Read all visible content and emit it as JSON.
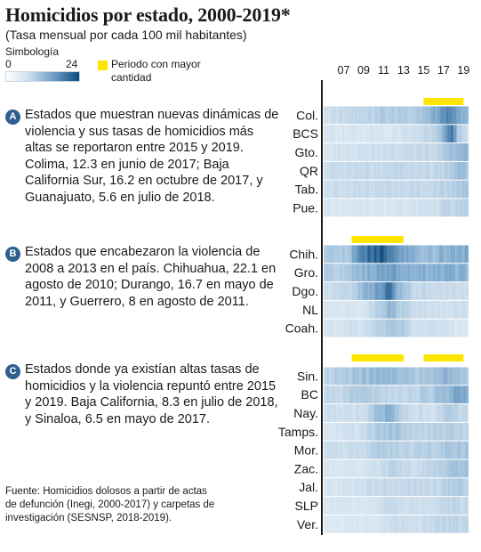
{
  "title": "Homicidios por estado, 2000-2019*",
  "subtitle": "(Tasa mensual por cada 100 mil habitantes)",
  "legend": {
    "title": "Simbología",
    "min_label": "0",
    "max_label": "24",
    "period_label": "Periodo con mayor cantidad",
    "period_color": "#ffe600",
    "scale_colors": [
      "#ffffff",
      "#0c4a7e"
    ]
  },
  "groups": [
    {
      "badge": "A",
      "text": "Estados que muestran nuevas dinámicas de violencia y sus tasas de homicidios más altas se reportaron entre 2015 y 2019. Colima, 12.3 en junio de 2017; Baja California Sur, 16.2 en octubre de 2017, y Guanajuato, 5.6 en julio de 2018."
    },
    {
      "badge": "B",
      "text": "Estados que encabezaron la violencia de 2008 a 2013 en el país. Chihuahua, 22.1 en agosto de 2010; Durango, 16.7 en mayo de 2011, y Guerrero, 8 en agosto de 2011."
    },
    {
      "badge": "C",
      "text": "Estados donde ya existían altas tasas de homicidios y la violencia repuntó entre 2015 y 2019. Baja California, 8.3 en julio de 2018, y Sinaloa, 6.5 en mayo de 2017."
    }
  ],
  "source": "Fuente: Homicidios dolosos a partir de actas de defunción (Inegi, 2000-2017) y carpetas de investigación (SESNSP, 2018-2019).",
  "chart_data": {
    "type": "heatmap",
    "title": "Homicidios por estado, 2000-2019*",
    "subtitle": "(Tasa mensual por cada 100 mil habitantes)",
    "x_tick_labels": [
      "07",
      "09",
      "11",
      "13",
      "15",
      "17",
      "19"
    ],
    "x_ticks": [
      2007,
      2009,
      2011,
      2013,
      2015,
      2017,
      2019
    ],
    "x_range": [
      2005,
      2019.5
    ],
    "color_scale": {
      "min": 0,
      "max": 24
    },
    "groups": [
      {
        "id": "A",
        "highlight_periods": [
          [
            2015,
            2019
          ]
        ],
        "states": [
          {
            "label": "Col.",
            "peak": 12.3,
            "peak_date": 2017.42,
            "profile": [
              [
                2005,
                1.5
              ],
              [
                2010,
                2.5
              ],
              [
                2011,
                3.5
              ],
              [
                2014,
                2.5
              ],
              [
                2015.5,
                4.5
              ],
              [
                2016.5,
                8
              ],
              [
                2017.4,
                12.3
              ],
              [
                2018.5,
                8
              ],
              [
                2019.5,
                5.5
              ]
            ]
          },
          {
            "label": "BCS",
            "peak": 16.2,
            "peak_date": 2017.79,
            "profile": [
              [
                2005,
                1
              ],
              [
                2012,
                1
              ],
              [
                2014,
                1.5
              ],
              [
                2016,
                2.5
              ],
              [
                2017,
                5
              ],
              [
                2017.8,
                16.2
              ],
              [
                2018.4,
                3.5
              ],
              [
                2019.5,
                1.5
              ]
            ]
          },
          {
            "label": "Gto.",
            "peak": 5.6,
            "peak_date": 2018.54,
            "profile": [
              [
                2005,
                1
              ],
              [
                2010,
                1.5
              ],
              [
                2016,
                2
              ],
              [
                2017,
                3
              ],
              [
                2018.5,
                5.6
              ],
              [
                2019.5,
                5
              ]
            ]
          },
          {
            "label": "QR",
            "peak": null,
            "peak_date": null,
            "profile": [
              [
                2005,
                1.5
              ],
              [
                2011,
                2
              ],
              [
                2016,
                2
              ],
              [
                2017.5,
                3
              ],
              [
                2018.5,
                4.5
              ],
              [
                2019.5,
                4
              ]
            ]
          },
          {
            "label": "Tab.",
            "peak": null,
            "peak_date": null,
            "profile": [
              [
                2005,
                1.5
              ],
              [
                2011,
                2
              ],
              [
                2016,
                2
              ],
              [
                2017.5,
                2.5
              ],
              [
                2018.7,
                4
              ],
              [
                2019.5,
                3.5
              ]
            ]
          },
          {
            "label": "Pue.",
            "peak": null,
            "peak_date": null,
            "profile": [
              [
                2005,
                1
              ],
              [
                2012,
                1
              ],
              [
                2016,
                1.5
              ],
              [
                2018,
                2.5
              ],
              [
                2019.5,
                2.5
              ]
            ]
          }
        ]
      },
      {
        "id": "B",
        "highlight_periods": [
          [
            2007.8,
            2013
          ]
        ],
        "states": [
          {
            "label": "Chih.",
            "peak": 22.1,
            "peak_date": 2010.62,
            "profile": [
              [
                2005,
                3.5
              ],
              [
                2007.5,
                3.5
              ],
              [
                2008.5,
                11
              ],
              [
                2009.5,
                16
              ],
              [
                2010.6,
                22.1
              ],
              [
                2011.5,
                15
              ],
              [
                2012.5,
                9
              ],
              [
                2014,
                6
              ],
              [
                2016,
                5
              ],
              [
                2018,
                7
              ],
              [
                2019.5,
                6.5
              ]
            ]
          },
          {
            "label": "Gro.",
            "peak": 8,
            "peak_date": 2011.62,
            "profile": [
              [
                2005,
                3
              ],
              [
                2008,
                4
              ],
              [
                2009,
                5.5
              ],
              [
                2010.5,
                6.5
              ],
              [
                2011.6,
                8
              ],
              [
                2012.5,
                7
              ],
              [
                2014,
                6
              ],
              [
                2016,
                6.5
              ],
              [
                2017.5,
                7
              ],
              [
                2019.5,
                5
              ]
            ]
          },
          {
            "label": "Dgo.",
            "peak": 16.7,
            "peak_date": 2011.37,
            "profile": [
              [
                2005,
                1.5
              ],
              [
                2008,
                2.5
              ],
              [
                2009,
                5
              ],
              [
                2010.5,
                9
              ],
              [
                2011.4,
                16.7
              ],
              [
                2012.3,
                6
              ],
              [
                2014,
                2
              ],
              [
                2019.5,
                1.5
              ]
            ]
          },
          {
            "label": "NL",
            "peak": null,
            "peak_date": null,
            "profile": [
              [
                2005,
                1
              ],
              [
                2009,
                1
              ],
              [
                2010.5,
                3
              ],
              [
                2011.5,
                5.5
              ],
              [
                2012.5,
                3.5
              ],
              [
                2014,
                1.5
              ],
              [
                2019.5,
                1.5
              ]
            ]
          },
          {
            "label": "Coah.",
            "peak": null,
            "peak_date": null,
            "profile": [
              [
                2005,
                1
              ],
              [
                2009.5,
                1.5
              ],
              [
                2011,
                3
              ],
              [
                2012,
                4
              ],
              [
                2013,
                3
              ],
              [
                2014,
                1.5
              ],
              [
                2019.5,
                1
              ]
            ]
          }
        ]
      },
      {
        "id": "C",
        "highlight_periods": [
          [
            2007.8,
            2013
          ],
          [
            2015,
            2019
          ]
        ],
        "states": [
          {
            "label": "Sin.",
            "peak": 6.5,
            "peak_date": 2017.37,
            "profile": [
              [
                2005,
                2.5
              ],
              [
                2008,
                3.5
              ],
              [
                2009,
                4.5
              ],
              [
                2010.5,
                5.5
              ],
              [
                2011.5,
                5
              ],
              [
                2013,
                4
              ],
              [
                2015,
                3.5
              ],
              [
                2017.4,
                6.5
              ],
              [
                2018.5,
                4
              ],
              [
                2019.5,
                3.5
              ]
            ]
          },
          {
            "label": "BC",
            "peak": 8.3,
            "peak_date": 2018.54,
            "profile": [
              [
                2005,
                2
              ],
              [
                2007,
                2
              ],
              [
                2008.5,
                3.5
              ],
              [
                2010,
                3
              ],
              [
                2012,
                2
              ],
              [
                2014,
                2.5
              ],
              [
                2016,
                3.5
              ],
              [
                2017.5,
                6
              ],
              [
                2018.5,
                8.3
              ],
              [
                2019.5,
                7
              ]
            ]
          },
          {
            "label": "Nay.",
            "peak": null,
            "peak_date": null,
            "profile": [
              [
                2005,
                1.5
              ],
              [
                2009,
                1.5
              ],
              [
                2010.5,
                5
              ],
              [
                2011.5,
                6
              ],
              [
                2012.5,
                3
              ],
              [
                2014,
                1.5
              ],
              [
                2016,
                1.5
              ],
              [
                2017.5,
                3
              ],
              [
                2019,
                2
              ],
              [
                2019.5,
                2
              ]
            ]
          },
          {
            "label": "Tamps.",
            "peak": null,
            "peak_date": null,
            "profile": [
              [
                2005,
                1
              ],
              [
                2009,
                1.5
              ],
              [
                2010.5,
                3.5
              ],
              [
                2012,
                4
              ],
              [
                2014,
                2.5
              ],
              [
                2016,
                2.5
              ],
              [
                2017.5,
                3
              ],
              [
                2019.5,
                2.5
              ]
            ]
          },
          {
            "label": "Mor.",
            "peak": null,
            "peak_date": null,
            "profile": [
              [
                2005,
                1.5
              ],
              [
                2009,
                2
              ],
              [
                2010.5,
                3.5
              ],
              [
                2012,
                3
              ],
              [
                2014,
                2.5
              ],
              [
                2016,
                3
              ],
              [
                2017.5,
                3.5
              ],
              [
                2019.5,
                4
              ]
            ]
          },
          {
            "label": "Zac.",
            "peak": null,
            "peak_date": null,
            "profile": [
              [
                2005,
                1
              ],
              [
                2009,
                1
              ],
              [
                2011,
                2
              ],
              [
                2012,
                2.5
              ],
              [
                2014,
                1.5
              ],
              [
                2016,
                2.5
              ],
              [
                2018,
                4
              ],
              [
                2019.5,
                4
              ]
            ]
          },
          {
            "label": "Jal.",
            "peak": null,
            "peak_date": null,
            "profile": [
              [
                2005,
                1
              ],
              [
                2009,
                1.5
              ],
              [
                2011,
                2
              ],
              [
                2013,
                2
              ],
              [
                2016,
                2
              ],
              [
                2018,
                3
              ],
              [
                2019.5,
                3
              ]
            ]
          },
          {
            "label": "SLP",
            "peak": null,
            "peak_date": null,
            "profile": [
              [
                2005,
                1
              ],
              [
                2010,
                1
              ],
              [
                2011.5,
                2
              ],
              [
                2013,
                1.5
              ],
              [
                2016,
                1.5
              ],
              [
                2018,
                2.5
              ],
              [
                2019.5,
                2
              ]
            ]
          },
          {
            "label": "Ver.",
            "peak": null,
            "peak_date": null,
            "profile": [
              [
                2005,
                0.8
              ],
              [
                2010,
                1
              ],
              [
                2012,
                1.5
              ],
              [
                2014,
                1.5
              ],
              [
                2016,
                1.8
              ],
              [
                2018,
                2.5
              ],
              [
                2019.5,
                2
              ]
            ]
          }
        ]
      }
    ]
  }
}
